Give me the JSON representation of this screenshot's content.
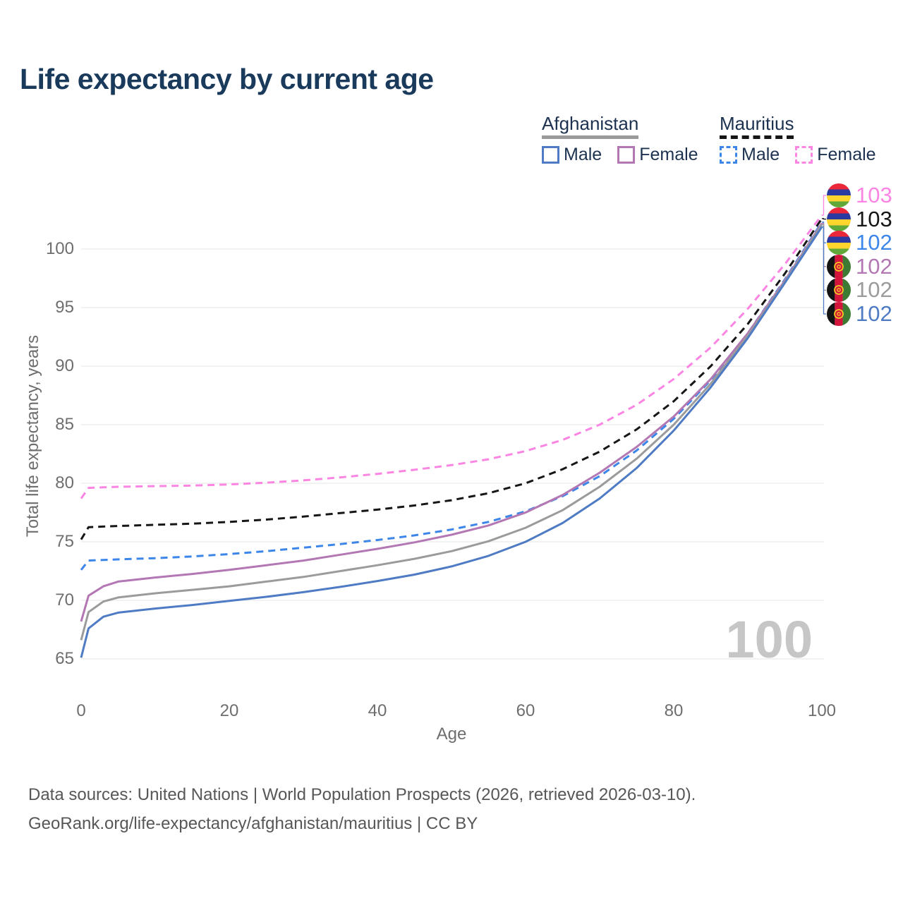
{
  "title": "Life expectancy by current age",
  "legend": {
    "groups": [
      {
        "name": "Afghanistan",
        "line_style": "solid",
        "underline_color": "#9a9a9a",
        "items": [
          {
            "label": "Male",
            "color": "#4e7bc4"
          },
          {
            "label": "Female",
            "color": "#b377b3"
          }
        ]
      },
      {
        "name": "Mauritius",
        "line_style": "dashed",
        "underline_color": "#161616",
        "items": [
          {
            "label": "Male",
            "color": "#3c86ea"
          },
          {
            "label": "Female",
            "color": "#fb85e2"
          }
        ]
      }
    ]
  },
  "watermark": "100",
  "footer": {
    "line1": "Data sources: United Nations | World Population Prospects (2026, retrieved 2026-03-10).",
    "line2": "GeoRank.org/life-expectancy/afghanistan/mauritius | CC BY"
  },
  "chart_data": {
    "type": "line",
    "title": "Life expectancy by current age",
    "xlabel": "Age",
    "ylabel": "Total life expectancy, years",
    "xlim": [
      0,
      100
    ],
    "ylim": [
      63.5,
      104.5
    ],
    "xticks": [
      0,
      20,
      40,
      60,
      80,
      100
    ],
    "yticks": [
      65,
      70,
      75,
      80,
      85,
      90,
      95,
      100
    ],
    "grid": "horizontal",
    "legend_position": "top-right",
    "x": [
      0,
      1,
      3,
      5,
      10,
      15,
      20,
      25,
      30,
      35,
      40,
      45,
      50,
      55,
      60,
      65,
      70,
      75,
      80,
      85,
      90,
      95,
      100
    ],
    "series": [
      {
        "name": "Mauritius Female",
        "country": "Mauritius",
        "sex": "Female",
        "flag": "mauritius",
        "color": "#fb85e2",
        "dashed": true,
        "end_label": "103",
        "values": [
          78.7,
          79.6,
          79.65,
          79.7,
          79.75,
          79.8,
          79.9,
          80.05,
          80.25,
          80.5,
          80.8,
          81.15,
          81.55,
          82.05,
          82.75,
          83.7,
          85.0,
          86.7,
          88.9,
          91.6,
          94.9,
          98.7,
          102.9
        ]
      },
      {
        "name": "Mauritius Both sexes",
        "country": "Mauritius",
        "sex": "Both",
        "flag": "mauritius",
        "color": "#161616",
        "dashed": true,
        "end_label": "103",
        "values": [
          75.2,
          76.25,
          76.3,
          76.35,
          76.45,
          76.55,
          76.7,
          76.9,
          77.15,
          77.45,
          77.75,
          78.1,
          78.55,
          79.15,
          80.0,
          81.2,
          82.7,
          84.6,
          87.0,
          90.0,
          93.6,
          97.9,
          102.6
        ]
      },
      {
        "name": "Mauritius Male",
        "country": "Mauritius",
        "sex": "Male",
        "flag": "mauritius",
        "color": "#3c86ea",
        "dashed": true,
        "end_label": "102",
        "values": [
          72.6,
          73.4,
          73.45,
          73.5,
          73.6,
          73.75,
          73.95,
          74.2,
          74.5,
          74.8,
          75.15,
          75.55,
          76.05,
          76.7,
          77.6,
          78.9,
          80.6,
          82.8,
          85.5,
          88.8,
          92.8,
          97.4,
          102.3
        ]
      },
      {
        "name": "Afghanistan Female",
        "country": "Afghanistan",
        "sex": "Female",
        "flag": "afghanistan",
        "color": "#b377b3",
        "dashed": false,
        "end_label": "102",
        "values": [
          68.2,
          70.4,
          71.2,
          71.6,
          71.95,
          72.25,
          72.6,
          73.0,
          73.4,
          73.9,
          74.4,
          74.95,
          75.6,
          76.4,
          77.5,
          79.0,
          80.9,
          83.1,
          85.7,
          88.9,
          92.8,
          97.3,
          102.2
        ]
      },
      {
        "name": "Afghanistan Both sexes",
        "country": "Afghanistan",
        "sex": "Both",
        "flag": "afghanistan",
        "color": "#9b9b9b",
        "dashed": false,
        "end_label": "102",
        "values": [
          66.6,
          69.0,
          69.9,
          70.25,
          70.6,
          70.9,
          71.2,
          71.6,
          72.0,
          72.5,
          73.0,
          73.55,
          74.2,
          75.05,
          76.2,
          77.7,
          79.7,
          82.1,
          85.0,
          88.5,
          92.6,
          97.2,
          102.1
        ]
      },
      {
        "name": "Afghanistan Male",
        "country": "Afghanistan",
        "sex": "Male",
        "flag": "afghanistan",
        "color": "#4e7bc4",
        "dashed": false,
        "end_label": "102",
        "values": [
          65.1,
          67.6,
          68.6,
          68.95,
          69.3,
          69.6,
          69.95,
          70.3,
          70.7,
          71.15,
          71.65,
          72.2,
          72.9,
          73.8,
          75.0,
          76.6,
          78.7,
          81.3,
          84.5,
          88.2,
          92.4,
          97.1,
          101.9
        ]
      }
    ]
  }
}
